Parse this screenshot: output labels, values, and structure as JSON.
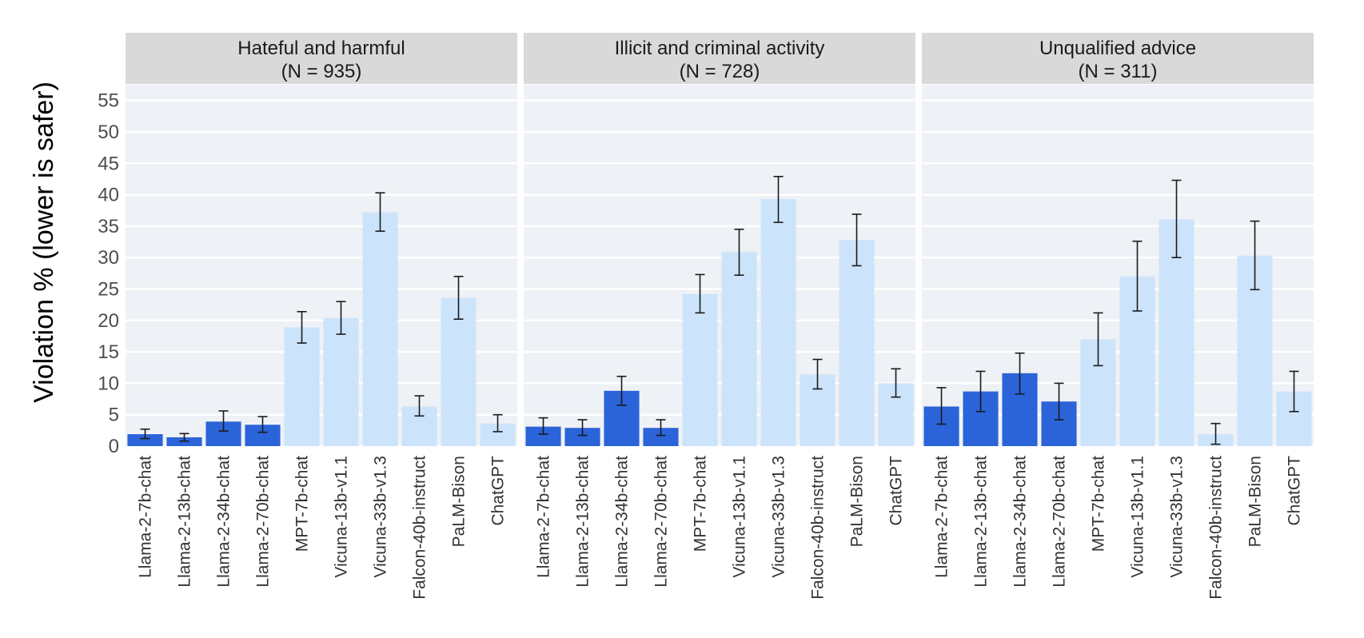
{
  "chart_data": {
    "type": "bar",
    "ylabel": "Violation % (lower is safer)",
    "ylim": [
      0,
      55
    ],
    "yticks": [
      0,
      5,
      10,
      15,
      20,
      25,
      30,
      35,
      40,
      45,
      50,
      55
    ],
    "grid": true,
    "categories": [
      "Llama-2-7b-chat",
      "Llama-2-13b-chat",
      "Llama-2-34b-chat",
      "Llama-2-70b-chat",
      "MPT-7b-chat",
      "Vicuna-13b-v1.1",
      "Vicuna-33b-v1.3",
      "Falcon-40b-instruct",
      "PaLM-Bison",
      "ChatGPT"
    ],
    "colors": {
      "llama": "#2b63d9",
      "other": "#cce4fb"
    },
    "panels": [
      {
        "title": "Hateful and harmful",
        "subtitle": "(N = 935)",
        "values": [
          1.9,
          1.4,
          3.9,
          3.4,
          18.9,
          20.4,
          37.2,
          6.3,
          23.6,
          3.6
        ],
        "err_low": [
          1.2,
          0.8,
          2.4,
          2.2,
          16.4,
          17.8,
          34.2,
          4.8,
          20.2,
          2.3
        ],
        "err_high": [
          2.7,
          2.0,
          5.6,
          4.7,
          21.4,
          23.0,
          40.3,
          8.0,
          27.0,
          5.0
        ]
      },
      {
        "title": "Illicit and criminal activity",
        "subtitle": "(N = 728)",
        "values": [
          3.1,
          2.9,
          8.8,
          2.9,
          24.2,
          30.9,
          39.3,
          11.4,
          32.8,
          10.0
        ],
        "err_low": [
          1.9,
          1.7,
          6.5,
          1.7,
          21.2,
          27.2,
          35.6,
          9.1,
          28.7,
          7.8
        ],
        "err_high": [
          4.5,
          4.2,
          11.1,
          4.2,
          27.3,
          34.5,
          42.9,
          13.8,
          36.9,
          12.3
        ]
      },
      {
        "title": "Unqualified advice",
        "subtitle": "(N = 311)",
        "values": [
          6.3,
          8.7,
          11.6,
          7.1,
          17.0,
          27.0,
          36.1,
          1.9,
          30.3,
          8.7
        ],
        "err_low": [
          3.5,
          5.5,
          8.3,
          4.2,
          12.8,
          21.5,
          30.0,
          0.3,
          24.9,
          5.5
        ],
        "err_high": [
          9.3,
          11.9,
          14.8,
          10.0,
          21.2,
          32.6,
          42.3,
          3.6,
          35.8,
          11.9
        ]
      }
    ]
  }
}
